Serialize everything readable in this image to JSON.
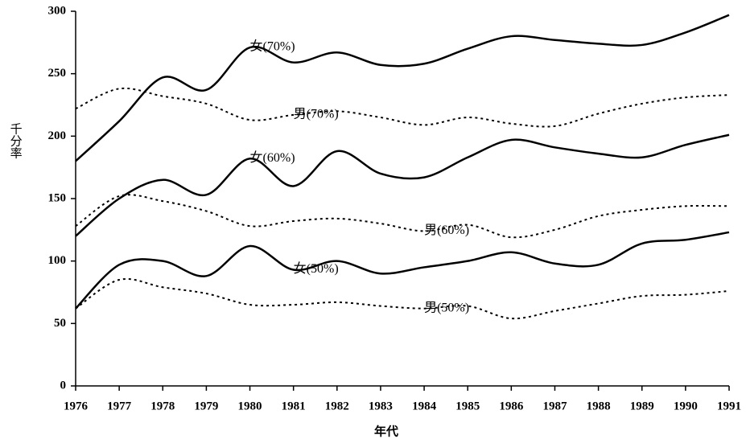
{
  "chart_data": {
    "type": "line",
    "x_label": "年代",
    "y_label": "千分率",
    "x": [
      1976,
      1977,
      1978,
      1979,
      1980,
      1981,
      1982,
      1983,
      1984,
      1985,
      1986,
      1987,
      1988,
      1989,
      1990,
      1991
    ],
    "xlim": [
      1976,
      1991
    ],
    "xticks": [
      1976,
      1977,
      1978,
      1979,
      1980,
      1981,
      1982,
      1983,
      1984,
      1985,
      1986,
      1987,
      1988,
      1989,
      1990,
      1991
    ],
    "ylim": [
      0,
      300
    ],
    "yticks": [
      0,
      50,
      100,
      150,
      200,
      250,
      300
    ],
    "series": [
      {
        "name": "女(70%)",
        "color": "#000000",
        "style": "solid",
        "values": [
          180,
          212,
          247,
          237,
          271,
          259,
          267,
          257,
          258,
          270,
          280,
          277,
          274,
          273,
          283,
          297
        ]
      },
      {
        "name": "男(70%)",
        "color": "#000000",
        "style": "dotted",
        "values": [
          222,
          238,
          232,
          226,
          213,
          217,
          220,
          215,
          209,
          215,
          210,
          208,
          218,
          226,
          231,
          233
        ]
      },
      {
        "name": "女(60%)",
        "color": "#000000",
        "style": "solid",
        "values": [
          120,
          150,
          165,
          153,
          182,
          160,
          188,
          170,
          167,
          183,
          197,
          191,
          186,
          183,
          193,
          201
        ]
      },
      {
        "name": "男(60%)",
        "color": "#000000",
        "style": "dotted",
        "values": [
          128,
          152,
          148,
          140,
          128,
          132,
          134,
          130,
          124,
          129,
          119,
          125,
          136,
          141,
          144,
          144
        ]
      },
      {
        "name": "女(50%)",
        "color": "#000000",
        "style": "solid",
        "values": [
          62,
          97,
          100,
          88,
          112,
          93,
          100,
          90,
          95,
          100,
          107,
          98,
          97,
          114,
          117,
          123
        ]
      },
      {
        "name": "男(50%)",
        "color": "#000000",
        "style": "dotted",
        "values": [
          62,
          85,
          79,
          74,
          65,
          65,
          67,
          64,
          62,
          64,
          54,
          60,
          66,
          72,
          73,
          76
        ]
      }
    ]
  }
}
